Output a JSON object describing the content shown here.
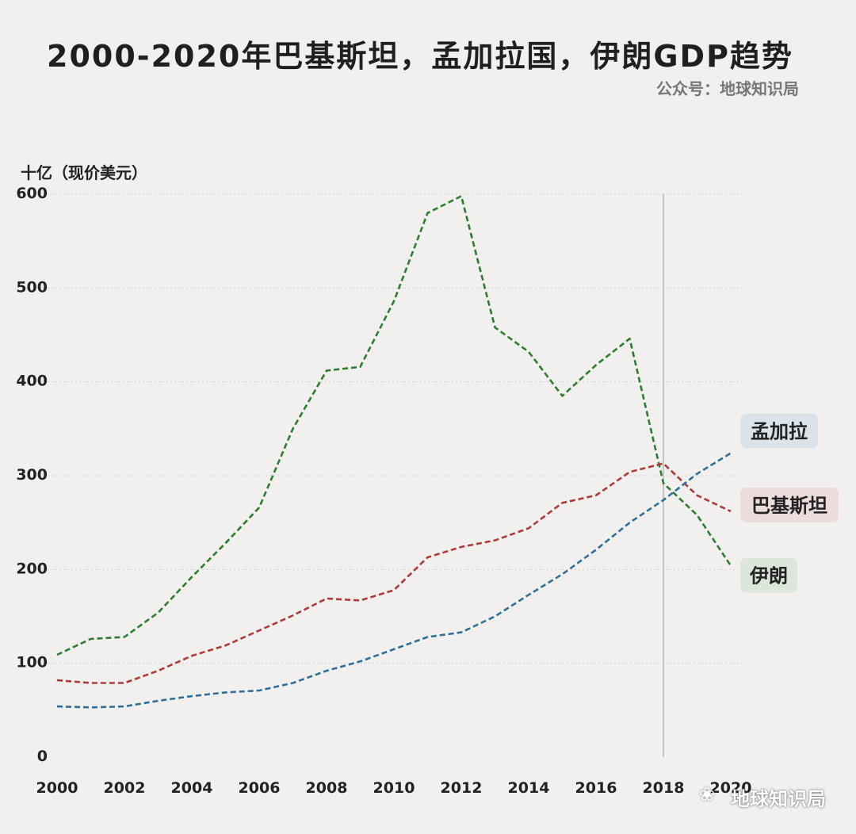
{
  "page": {
    "title": "2000-2020年巴基斯坦，孟加拉国，伊朗GDP趋势",
    "subtitle": "公众号：地球知识局",
    "watermark": "地球知识局",
    "watermark_icon": "wechat-icon"
  },
  "chart_data": {
    "type": "line",
    "title": "2000-2020年巴基斯坦，孟加拉国，伊朗GDP趋势",
    "ylabel": "十亿（现价美元）",
    "xlabel": "",
    "ylim": [
      0,
      600
    ],
    "xlim": [
      2000,
      2020
    ],
    "x_ticks": [
      "2000",
      "2002",
      "2004",
      "2006",
      "2008",
      "2010",
      "2012",
      "2014",
      "2016",
      "2018",
      "2020"
    ],
    "y_ticks": [
      "0",
      "100",
      "200",
      "300",
      "400",
      "500",
      "600"
    ],
    "grid": "horizontal-dotted",
    "reference_line_x": 2018,
    "x": [
      2000,
      2001,
      2002,
      2003,
      2004,
      2005,
      2006,
      2007,
      2008,
      2009,
      2010,
      2011,
      2012,
      2013,
      2014,
      2015,
      2016,
      2017,
      2018,
      2019,
      2020
    ],
    "series": [
      {
        "name": "伊朗",
        "color": "#2e7d32",
        "label_bg": "#dde6da",
        "values": [
          109,
          126,
          128,
          154,
          192,
          228,
          266,
          350,
          412,
          416,
          486,
          580,
          598,
          458,
          432,
          385,
          418,
          446,
          292,
          258,
          204
        ]
      },
      {
        "name": "巴基斯坦",
        "color": "#b03a3a",
        "label_bg": "#ecdcdc",
        "values": [
          82,
          79,
          79,
          92,
          108,
          119,
          135,
          151,
          169,
          167,
          178,
          213,
          224,
          231,
          244,
          271,
          279,
          304,
          313,
          279,
          262
        ]
      },
      {
        "name": "孟加拉",
        "color": "#2f6f9a",
        "label_bg": "#dbe3ea",
        "values": [
          54,
          53,
          54,
          60,
          65,
          69,
          71,
          79,
          92,
          102,
          115,
          128,
          133,
          150,
          173,
          195,
          221,
          250,
          274,
          302,
          324
        ]
      }
    ]
  }
}
